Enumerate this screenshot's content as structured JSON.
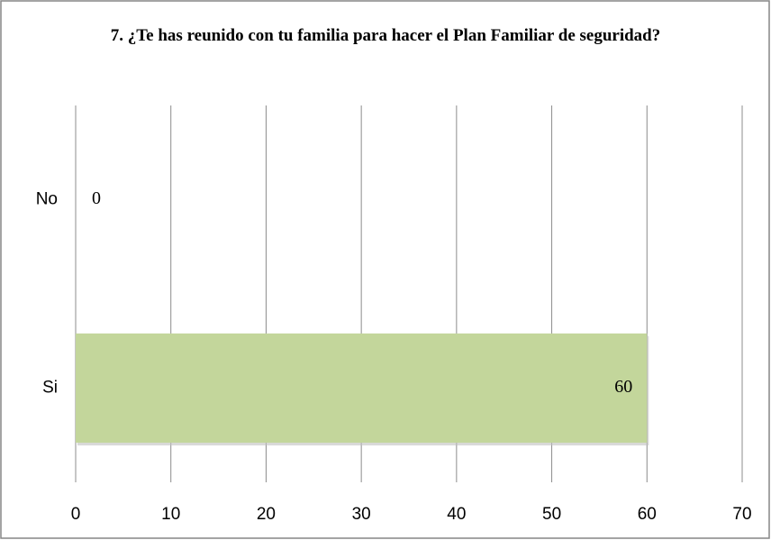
{
  "chart_data": {
    "type": "bar",
    "orientation": "horizontal",
    "title": "7. ¿Te has reunido con tu familia para hacer el Plan Familiar de seguridad?",
    "categories": [
      "No",
      "Si"
    ],
    "values": [
      0,
      60
    ],
    "color": "#c3d69b",
    "xlim": [
      0,
      70
    ],
    "xticks": [
      0,
      10,
      20,
      30,
      40,
      50,
      60,
      70
    ],
    "grid": true
  }
}
